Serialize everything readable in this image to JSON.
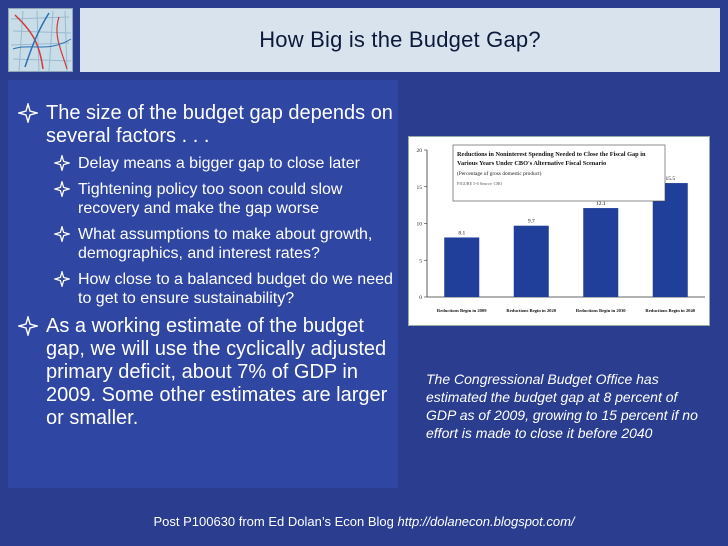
{
  "title": "How Big is the Budget Gap?",
  "bullets": [
    {
      "level": 1,
      "text": "The size of the budget gap depends on several factors . . ."
    },
    {
      "level": 2,
      "text": "Delay means a bigger gap to close later"
    },
    {
      "level": 2,
      "text": "Tightening policy too soon could slow recovery and make the gap worse"
    },
    {
      "level": 2,
      "text": "What assumptions to make about growth, demographics, and interest rates?"
    },
    {
      "level": 2,
      "text": "How close to a balanced budget do we need to get to ensure sustainability?"
    },
    {
      "level": 1,
      "text": "As a working estimate of the budget gap, we will use the cyclically adjusted primary deficit, about 7% of GDP in 2009. Some other estimates are larger or smaller."
    }
  ],
  "caption": "The Congressional Budget Office has estimated the budget gap at 8 percent of GDP as of 2009, growing to 15 percent if no effort is made to close it before 2040",
  "footer": {
    "text": "Post P100630 from Ed Dolan’s Econ Blog ",
    "url": "http://dolanecon.blogspot.com/"
  },
  "colors": {
    "background": "#2a3d8f",
    "panel": "#2f46a3",
    "title_box": "#d9e3ee",
    "bar": "#1f3f9a"
  },
  "icons": {
    "bullet": "four-point-star-icon"
  },
  "chart_data": {
    "type": "bar",
    "title": "Reductions in Noninterest Spending Needed to Close the Fiscal Gap in Various Years Under CBO's Alternative Fiscal Scenario",
    "subtitle": "(Percentage of gross domestic product)",
    "note": "FIGURE 5-6 Source: CBO",
    "categories": [
      "Reductions Begin in 2009",
      "Reductions Begin in 2020",
      "Reductions Begin in 2030",
      "Reductions Begin in 2040"
    ],
    "values": [
      8.1,
      9.7,
      12.1,
      15.5
    ],
    "value_labels": [
      "8.1",
      "9.7",
      "12.1",
      "15.5"
    ],
    "yticks": [
      "0",
      "5",
      "10",
      "15",
      "20"
    ],
    "ylim": [
      0,
      20
    ],
    "grid": false
  }
}
